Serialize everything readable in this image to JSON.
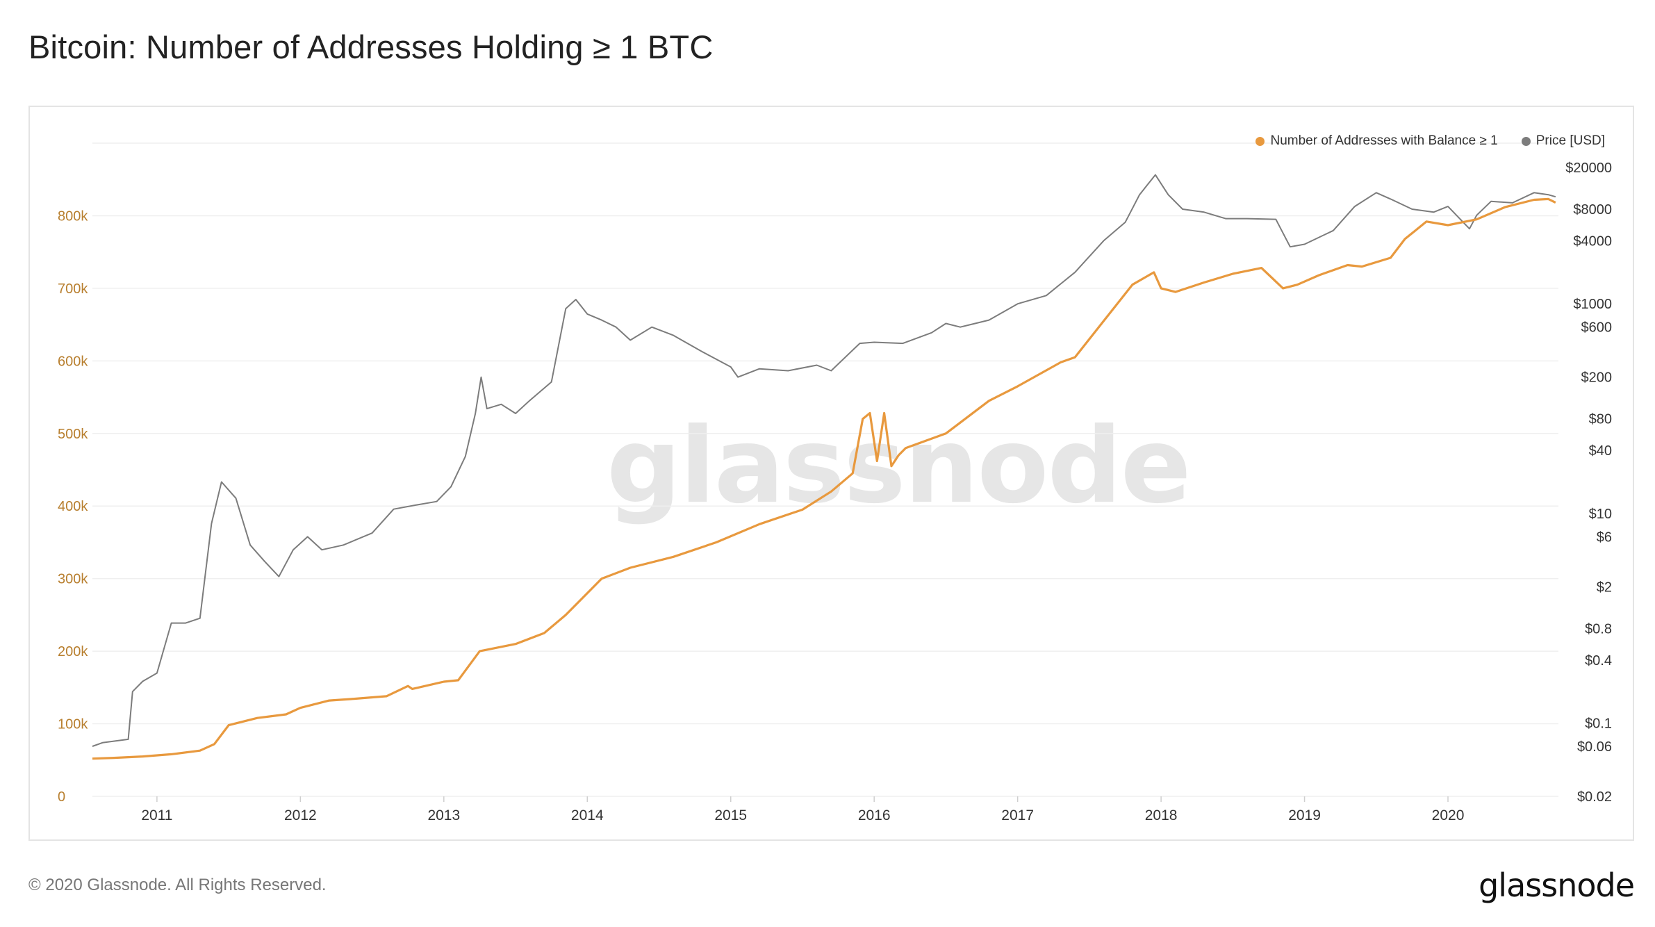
{
  "title": "Bitcoin: Number of Addresses Holding ≥ 1 BTC",
  "footer": "© 2020 Glassnode. All Rights Reserved.",
  "logo": "glassnode",
  "watermark": "glassnode",
  "colors": {
    "addresses": "#e8993e",
    "price": "#7c7c7c",
    "left_axis": "#b87f2f",
    "grid": "#efefef"
  },
  "legend": [
    {
      "label": "Number of Addresses with Balance ≥ 1",
      "color": "#e8993e"
    },
    {
      "label": "Price [USD]",
      "color": "#7c7c7c"
    }
  ],
  "chart_data": {
    "type": "line",
    "grid": true,
    "legend_position": "top-right",
    "x_ticks": [
      "2011",
      "2012",
      "2013",
      "2014",
      "2015",
      "2016",
      "2017",
      "2018",
      "2019",
      "2020"
    ],
    "x_range": [
      2010.55,
      2020.77
    ],
    "y_left": {
      "ticks": [
        0,
        100000,
        200000,
        300000,
        400000,
        500000,
        600000,
        700000,
        800000
      ],
      "tick_labels": [
        "0",
        "100k",
        "200k",
        "300k",
        "400k",
        "500k",
        "600k",
        "700k",
        "800k"
      ],
      "range": [
        0,
        900000
      ]
    },
    "y_right": {
      "scale": "log",
      "range": [
        0.02,
        20000
      ],
      "ticks": [
        20000,
        8000,
        4000,
        1000,
        600,
        200,
        80,
        40,
        10,
        6,
        2,
        0.8,
        0.4,
        0.1,
        0.06,
        0.02
      ],
      "tick_labels": [
        "$20000",
        "$8000",
        "$4000",
        "$1000",
        "$600",
        "$200",
        "$80",
        "$40",
        "$10",
        "$6",
        "$2",
        "$0.8",
        "$0.4",
        "$0.1",
        "$0.06",
        "$0.02"
      ]
    },
    "series": [
      {
        "name": "Number of Addresses with Balance ≥ 1",
        "axis": "left",
        "x": [
          2010.55,
          2010.7,
          2010.9,
          2011.1,
          2011.3,
          2011.4,
          2011.5,
          2011.7,
          2011.9,
          2012.0,
          2012.2,
          2012.35,
          2012.6,
          2012.75,
          2012.78,
          2013.0,
          2013.1,
          2013.25,
          2013.5,
          2013.7,
          2013.85,
          2013.95,
          2014.1,
          2014.3,
          2014.6,
          2014.9,
          2015.2,
          2015.5,
          2015.7,
          2015.85,
          2015.92,
          2015.97,
          2016.02,
          2016.07,
          2016.12,
          2016.17,
          2016.22,
          2016.5,
          2016.8,
          2017.0,
          2017.3,
          2017.4,
          2017.6,
          2017.8,
          2017.95,
          2018.0,
          2018.1,
          2018.3,
          2018.5,
          2018.7,
          2018.85,
          2018.95,
          2019.1,
          2019.3,
          2019.4,
          2019.6,
          2019.7,
          2019.85,
          2020.0,
          2020.2,
          2020.4,
          2020.6,
          2020.7,
          2020.75
        ],
        "values": [
          52000,
          53000,
          55000,
          58000,
          63000,
          72000,
          98000,
          108000,
          113000,
          122000,
          132000,
          134000,
          138000,
          152000,
          148000,
          158000,
          160000,
          200000,
          210000,
          225000,
          250000,
          270000,
          300000,
          315000,
          330000,
          350000,
          375000,
          395000,
          420000,
          445000,
          520000,
          528000,
          462000,
          528000,
          455000,
          470000,
          480000,
          500000,
          545000,
          565000,
          598000,
          605000,
          655000,
          705000,
          722000,
          700000,
          695000,
          708000,
          720000,
          728000,
          700000,
          705000,
          718000,
          732000,
          730000,
          742000,
          768000,
          792000,
          787000,
          795000,
          812000,
          822000,
          823000,
          818000
        ]
      },
      {
        "name": "Price [USD]",
        "axis": "right",
        "x": [
          2010.55,
          2010.62,
          2010.8,
          2010.83,
          2010.9,
          2011.0,
          2011.1,
          2011.2,
          2011.3,
          2011.38,
          2011.45,
          2011.55,
          2011.65,
          2011.75,
          2011.85,
          2011.95,
          2012.05,
          2012.15,
          2012.3,
          2012.5,
          2012.65,
          2012.8,
          2012.95,
          2013.05,
          2013.15,
          2013.22,
          2013.26,
          2013.3,
          2013.4,
          2013.5,
          2013.6,
          2013.75,
          2013.85,
          2013.92,
          2014.0,
          2014.1,
          2014.2,
          2014.3,
          2014.45,
          2014.6,
          2014.8,
          2015.0,
          2015.05,
          2015.2,
          2015.4,
          2015.6,
          2015.7,
          2015.9,
          2016.0,
          2016.2,
          2016.4,
          2016.5,
          2016.6,
          2016.8,
          2017.0,
          2017.2,
          2017.4,
          2017.6,
          2017.75,
          2017.85,
          2017.96,
          2018.05,
          2018.15,
          2018.3,
          2018.45,
          2018.6,
          2018.8,
          2018.9,
          2019.0,
          2019.2,
          2019.35,
          2019.5,
          2019.6,
          2019.75,
          2019.9,
          2020.0,
          2020.15,
          2020.2,
          2020.3,
          2020.45,
          2020.6,
          2020.7,
          2020.75
        ],
        "values": [
          0.06,
          0.065,
          0.07,
          0.2,
          0.25,
          0.3,
          0.9,
          0.9,
          1.0,
          8,
          20,
          14,
          5,
          3.5,
          2.5,
          4.5,
          6,
          4.5,
          5,
          6.5,
          11,
          12,
          13,
          18,
          35,
          90,
          200,
          100,
          110,
          90,
          120,
          180,
          900,
          1100,
          800,
          700,
          600,
          450,
          600,
          500,
          350,
          250,
          200,
          240,
          230,
          260,
          230,
          420,
          430,
          420,
          530,
          650,
          600,
          700,
          1000,
          1200,
          2000,
          4000,
          6000,
          11000,
          17000,
          11000,
          8000,
          7500,
          6500,
          6500,
          6400,
          3500,
          3700,
          5000,
          8500,
          11500,
          10000,
          8000,
          7500,
          8500,
          5200,
          7000,
          9500,
          9200,
          11500,
          11000,
          10500
        ]
      }
    ]
  }
}
